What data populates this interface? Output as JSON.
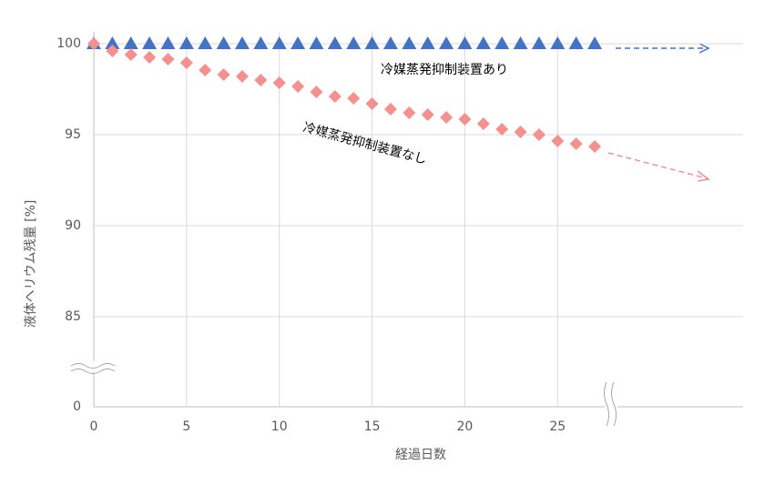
{
  "chart_data": {
    "type": "scatter",
    "x_label": "経過日数",
    "y_label": "液体ヘリウム残量 [%]",
    "x": [
      0,
      1,
      2,
      3,
      4,
      5,
      6,
      7,
      8,
      9,
      10,
      11,
      12,
      13,
      14,
      15,
      16,
      17,
      18,
      19,
      20,
      21,
      22,
      23,
      24,
      25,
      26,
      27
    ],
    "series": [
      {
        "name": "冷媒蒸発抑制装置あり",
        "color": "#4472c4",
        "marker": "triangle",
        "values": [
          100,
          100,
          100,
          100,
          100,
          100,
          100,
          100,
          100,
          100,
          100,
          100,
          100,
          100,
          100,
          100,
          100,
          100,
          100,
          100,
          100,
          100,
          100,
          100,
          100,
          100,
          100,
          100
        ]
      },
      {
        "name": "冷媒蒸発抑制装置なし",
        "color": "#f4918f",
        "marker": "diamond",
        "values": [
          100,
          99.6,
          99.4,
          99.25,
          99.15,
          98.95,
          98.55,
          98.3,
          98.2,
          98.0,
          97.85,
          97.65,
          97.35,
          97.1,
          97.0,
          96.7,
          96.4,
          96.2,
          96.1,
          95.95,
          95.85,
          95.6,
          95.3,
          95.15,
          95.0,
          94.65,
          94.5,
          94.35
        ]
      }
    ],
    "xlim": [
      0,
      35
    ],
    "xticks": [
      0,
      5,
      10,
      15,
      20,
      25
    ],
    "ylim": [
      0,
      100
    ],
    "yticks": [
      0,
      85,
      90,
      95,
      100
    ],
    "y_axis_break": [
      0,
      85
    ],
    "grid": true
  }
}
